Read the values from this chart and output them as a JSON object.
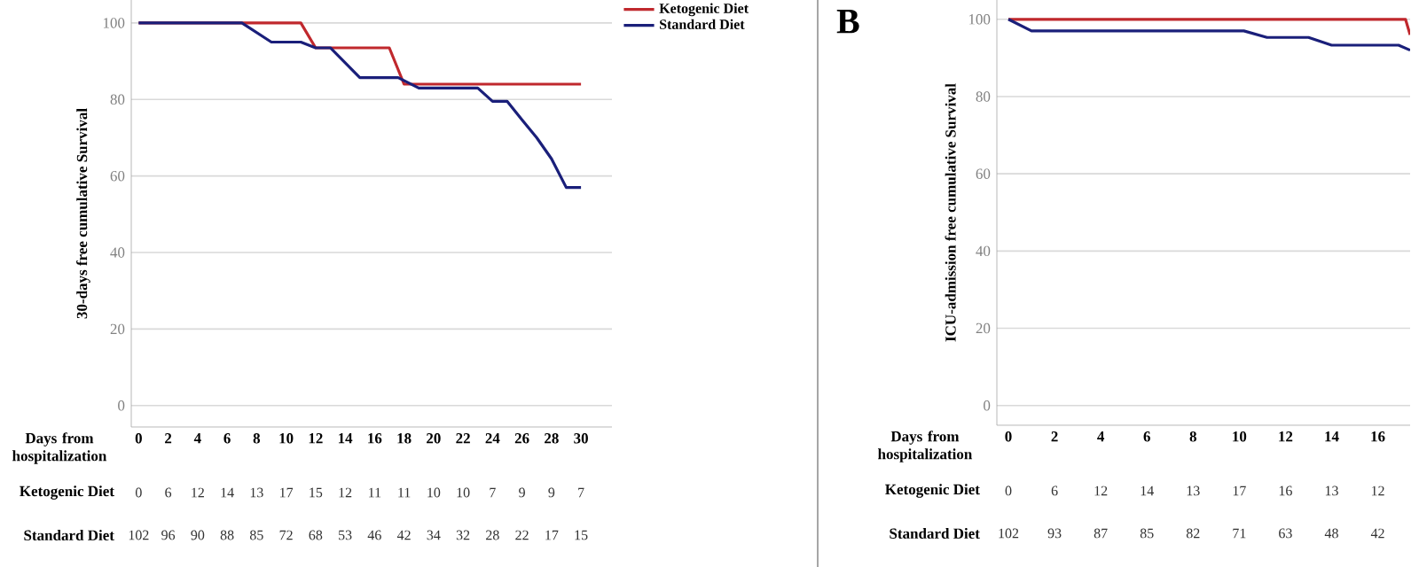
{
  "chart_data": [
    {
      "type": "line",
      "ylabel": "30-days free cumulative Survival",
      "xlabel": "Days from hospitalization",
      "xlim": [
        -0.5,
        32.1
      ],
      "ylim": [
        -5.6,
        106
      ],
      "xticks": [
        0,
        2,
        4,
        6,
        8,
        10,
        12,
        14,
        16,
        18,
        20,
        22,
        24,
        26,
        28,
        30
      ],
      "yticks": [
        0,
        20,
        40,
        60,
        80,
        100
      ],
      "grid": "y",
      "legend": "top right",
      "series": [
        {
          "name": "Ketogenic Diet",
          "color": "#c0282d",
          "x": [
            0,
            11,
            12,
            17,
            18,
            30
          ],
          "values": [
            100,
            100,
            93.5,
            93.5,
            84,
            84
          ]
        },
        {
          "name": "Standard Diet",
          "color": "#1a1f7a",
          "x": [
            0,
            7,
            9,
            11,
            12,
            13,
            15,
            17.6,
            19,
            23,
            24,
            25,
            26,
            27,
            28,
            29,
            30
          ],
          "values": [
            100,
            100,
            95,
            95,
            93.5,
            93.5,
            85.7,
            85.7,
            83,
            83,
            79.5,
            79.5,
            74.7,
            70,
            64.5,
            57,
            57
          ]
        }
      ],
      "annotations": [
        "Ketogenic Diet",
        "0",
        "6",
        "12",
        "14",
        "13",
        "17",
        "15",
        "12",
        "11",
        "11",
        "10",
        "10",
        "7",
        "9",
        "9",
        "7",
        "Standard Diet",
        "102",
        "96",
        "90",
        "88",
        "85",
        "72",
        "68",
        "53",
        "46",
        "42",
        "34",
        "32",
        "28",
        "22",
        "17",
        "15"
      ]
    },
    {
      "type": "line",
      "title": "B",
      "ylabel": "ICU-admission free cumulative Survival",
      "xlabel": "Days from hospitalization",
      "xlim": [
        -0.5,
        17.4
      ],
      "ylim": [
        -5.1,
        105
      ],
      "xticks": [
        0,
        2,
        4,
        6,
        8,
        10,
        12,
        14,
        16
      ],
      "yticks": [
        0,
        20,
        40,
        60,
        80,
        100
      ],
      "grid": "y",
      "series": [
        {
          "color": "#c0282d",
          "x": [
            0,
            17.2,
            17.4
          ],
          "values": [
            100,
            100,
            96
          ]
        },
        {
          "color": "#1a1f7a",
          "x": [
            0,
            1,
            10.2,
            11.2,
            13,
            14,
            16.9,
            17.4
          ],
          "values": [
            100,
            97,
            97,
            95.3,
            95.3,
            93.3,
            93.3,
            92
          ]
        }
      ],
      "annotations": [
        "Ketogenic Diet",
        "0",
        "6",
        "12",
        "14",
        "13",
        "17",
        "16",
        "13",
        "12",
        "Standard Diet",
        "102",
        "93",
        "87",
        "85",
        "82",
        "71",
        "63",
        "48",
        "42"
      ]
    }
  ]
}
